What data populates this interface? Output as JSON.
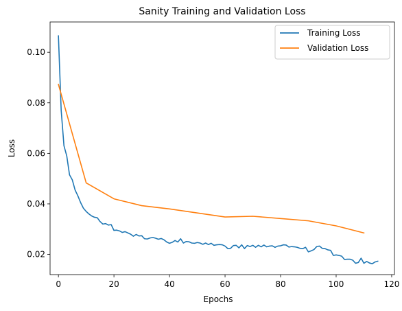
{
  "chart_data": {
    "type": "line",
    "title": "Sanity Training and Validation Loss",
    "xlabel": "Epochs",
    "ylabel": "Loss",
    "xlim": [
      -3,
      121
    ],
    "ylim": [
      0.012,
      0.112
    ],
    "xticks": [
      0,
      20,
      40,
      60,
      80,
      100,
      120
    ],
    "yticks": [
      0.02,
      0.04,
      0.06,
      0.08,
      0.1
    ],
    "ytick_labels": [
      "0.02",
      "0.04",
      "0.06",
      "0.08",
      "0.10"
    ],
    "legend_position": "top-right",
    "grid": false,
    "series": [
      {
        "name": "Training Loss",
        "color": "#1f77b4",
        "x": [
          0,
          1,
          2,
          3,
          4,
          5,
          6,
          7,
          8,
          9,
          10,
          11,
          12,
          13,
          14,
          15,
          16,
          17,
          18,
          19,
          20,
          21,
          22,
          23,
          24,
          25,
          26,
          27,
          28,
          29,
          30,
          31,
          32,
          33,
          34,
          35,
          36,
          37,
          38,
          39,
          40,
          41,
          42,
          43,
          44,
          45,
          46,
          47,
          48,
          49,
          50,
          51,
          52,
          53,
          54,
          55,
          56,
          57,
          58,
          59,
          60,
          61,
          62,
          63,
          64,
          65,
          66,
          67,
          68,
          69,
          70,
          71,
          72,
          73,
          74,
          75,
          76,
          77,
          78,
          79,
          80,
          81,
          82,
          83,
          84,
          85,
          86,
          87,
          88,
          89,
          90,
          91,
          92,
          93,
          94,
          95,
          96,
          97,
          98,
          99,
          100,
          101,
          102,
          103,
          104,
          105,
          106,
          107,
          108,
          109,
          110,
          111,
          112,
          113,
          114,
          115
        ],
        "y": [
          0.1065,
          0.077,
          0.063,
          0.059,
          0.0515,
          0.0495,
          0.0455,
          0.0432,
          0.0405,
          0.0383,
          0.037,
          0.036,
          0.0352,
          0.0347,
          0.0345,
          0.033,
          0.032,
          0.0322,
          0.0316,
          0.0318,
          0.0295,
          0.0296,
          0.0293,
          0.0287,
          0.029,
          0.0285,
          0.028,
          0.0272,
          0.0279,
          0.0273,
          0.0274,
          0.0262,
          0.0261,
          0.0265,
          0.0267,
          0.0264,
          0.026,
          0.0263,
          0.0258,
          0.0249,
          0.0244,
          0.0248,
          0.0255,
          0.0249,
          0.0262,
          0.0245,
          0.0251,
          0.025,
          0.0245,
          0.0244,
          0.0247,
          0.0245,
          0.024,
          0.0245,
          0.0239,
          0.0244,
          0.0236,
          0.0238,
          0.0239,
          0.0238,
          0.0233,
          0.0223,
          0.0224,
          0.0235,
          0.0236,
          0.0226,
          0.0238,
          0.0223,
          0.0235,
          0.0231,
          0.0236,
          0.0228,
          0.0236,
          0.023,
          0.0237,
          0.023,
          0.0233,
          0.0234,
          0.0228,
          0.0233,
          0.0234,
          0.0238,
          0.0237,
          0.0229,
          0.0231,
          0.023,
          0.0228,
          0.0224,
          0.0223,
          0.0228,
          0.021,
          0.0214,
          0.0219,
          0.0231,
          0.0233,
          0.0224,
          0.0223,
          0.0218,
          0.0216,
          0.0196,
          0.0198,
          0.0196,
          0.0193,
          0.018,
          0.0181,
          0.0181,
          0.0177,
          0.0165,
          0.0168,
          0.0185,
          0.0165,
          0.0172,
          0.0166,
          0.0163,
          0.017,
          0.0173
        ]
      },
      {
        "name": "Validation Loss",
        "color": "#ff7f0e",
        "x": [
          0,
          10,
          20,
          30,
          40,
          50,
          60,
          70,
          80,
          90,
          100,
          110
        ],
        "y": [
          0.0873,
          0.0483,
          0.042,
          0.0393,
          0.038,
          0.0364,
          0.0348,
          0.0351,
          0.0342,
          0.0333,
          0.0313,
          0.0285
        ]
      }
    ]
  }
}
